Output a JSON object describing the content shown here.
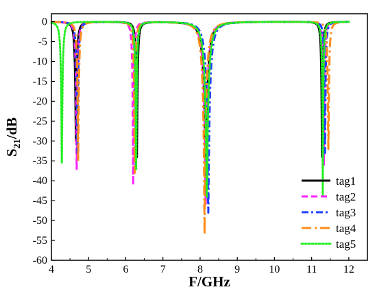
{
  "chart_data": {
    "type": "line",
    "xlabel": "F/GHz",
    "ylabel": {
      "base": "S",
      "sub": "21",
      "rest": "/dB"
    },
    "xlim": [
      4,
      12.5
    ],
    "ylim": [
      -60,
      2
    ],
    "xticks": [
      4,
      5,
      6,
      7,
      8,
      9,
      10,
      11,
      12
    ],
    "yticks": [
      0,
      -5,
      -10,
      -15,
      -20,
      -25,
      -30,
      -35,
      -40,
      -45,
      -50,
      -55,
      -60
    ],
    "grid": false,
    "legend_position": "lower-right",
    "x_range": [
      4.0,
      12.0
    ],
    "series": [
      {
        "name": "tag1",
        "color": "#000000",
        "dash": "solid",
        "resonances": [
          {
            "f0": 4.66,
            "depth": -30.0,
            "width": 0.05
          },
          {
            "f0": 6.3,
            "depth": -34.0,
            "width": 0.045
          },
          {
            "f0": 8.15,
            "depth": -40.0,
            "width": 0.13
          },
          {
            "f0": 11.28,
            "depth": -34.0,
            "width": 0.04
          }
        ]
      },
      {
        "name": "tag2",
        "color": "#ff22ff",
        "dash": "dashed",
        "resonances": [
          {
            "f0": 4.68,
            "depth": -37.0,
            "width": 0.05
          },
          {
            "f0": 6.2,
            "depth": -41.0,
            "width": 0.045
          },
          {
            "f0": 8.15,
            "depth": -46.0,
            "width": 0.13
          },
          {
            "f0": 11.33,
            "depth": -36.0,
            "width": 0.04
          }
        ]
      },
      {
        "name": "tag3",
        "color": "#1f3fff",
        "dash": "dashdot",
        "resonances": [
          {
            "f0": 4.7,
            "depth": -33.0,
            "width": 0.05
          },
          {
            "f0": 6.27,
            "depth": -36.0,
            "width": 0.045
          },
          {
            "f0": 8.22,
            "depth": -48.0,
            "width": 0.13
          },
          {
            "f0": 11.36,
            "depth": -33.0,
            "width": 0.04
          }
        ]
      },
      {
        "name": "tag4",
        "color": "#ff8c1a",
        "dash": "dashdotlong",
        "resonances": [
          {
            "f0": 4.72,
            "depth": -35.0,
            "width": 0.05
          },
          {
            "f0": 6.24,
            "depth": -38.0,
            "width": 0.045
          },
          {
            "f0": 8.12,
            "depth": -53.5,
            "width": 0.13
          },
          {
            "f0": 11.45,
            "depth": -32.0,
            "width": 0.045
          }
        ]
      },
      {
        "name": "tag5",
        "color": "#22ee22",
        "dash": "dotted",
        "resonances": [
          {
            "f0": 4.28,
            "depth": -35.5,
            "width": 0.05
          },
          {
            "f0": 6.28,
            "depth": -37.0,
            "width": 0.045
          },
          {
            "f0": 8.18,
            "depth": -44.0,
            "width": 0.13
          },
          {
            "f0": 11.3,
            "depth": -44.0,
            "width": 0.04
          }
        ]
      }
    ]
  }
}
